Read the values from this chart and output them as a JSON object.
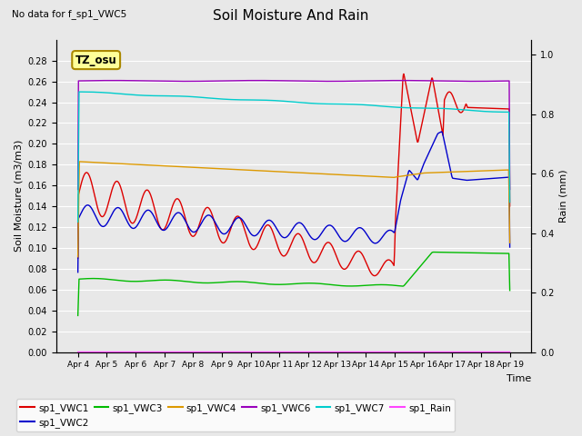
{
  "title": "Soil Moisture And Rain",
  "no_data_text": "No data for f_sp1_VWC5",
  "xlabel": "Time",
  "ylabel_left": "Soil Moisture (m3/m3)",
  "ylabel_right": "Rain (mm)",
  "annotation": "TZ_osu",
  "ylim_left": [
    0.0,
    0.3
  ],
  "ylim_right": [
    0.0,
    1.05
  ],
  "yticks_left": [
    0.0,
    0.02,
    0.04,
    0.06,
    0.08,
    0.1,
    0.12,
    0.14,
    0.16,
    0.18,
    0.2,
    0.22,
    0.24,
    0.26,
    0.28
  ],
  "yticks_right": [
    0.0,
    0.2,
    0.4,
    0.6,
    0.8,
    1.0
  ],
  "background_color": "#e8e8e8",
  "grid_color": "white",
  "legend_entries": [
    "sp1_VWC1",
    "sp1_VWC2",
    "sp1_VWC3",
    "sp1_VWC4",
    "sp1_VWC6",
    "sp1_VWC7",
    "sp1_Rain"
  ],
  "line_colors": {
    "sp1_VWC1": "#dd0000",
    "sp1_VWC2": "#0000cc",
    "sp1_VWC3": "#00bb00",
    "sp1_VWC4": "#dd9900",
    "sp1_VWC6": "#9900bb",
    "sp1_VWC7": "#00cccc",
    "sp1_Rain": "#ff44ff"
  },
  "xtick_labels": [
    "Apr 4",
    "Apr 5",
    "Apr 6",
    "Apr 7",
    "Apr 8",
    "Apr 9",
    "Apr 10",
    "Apr 11",
    "Apr 12",
    "Apr 13",
    "Apr 14",
    "Apr 15",
    "Apr 16",
    "Apr 17",
    "Apr 18",
    "Apr 19"
  ]
}
